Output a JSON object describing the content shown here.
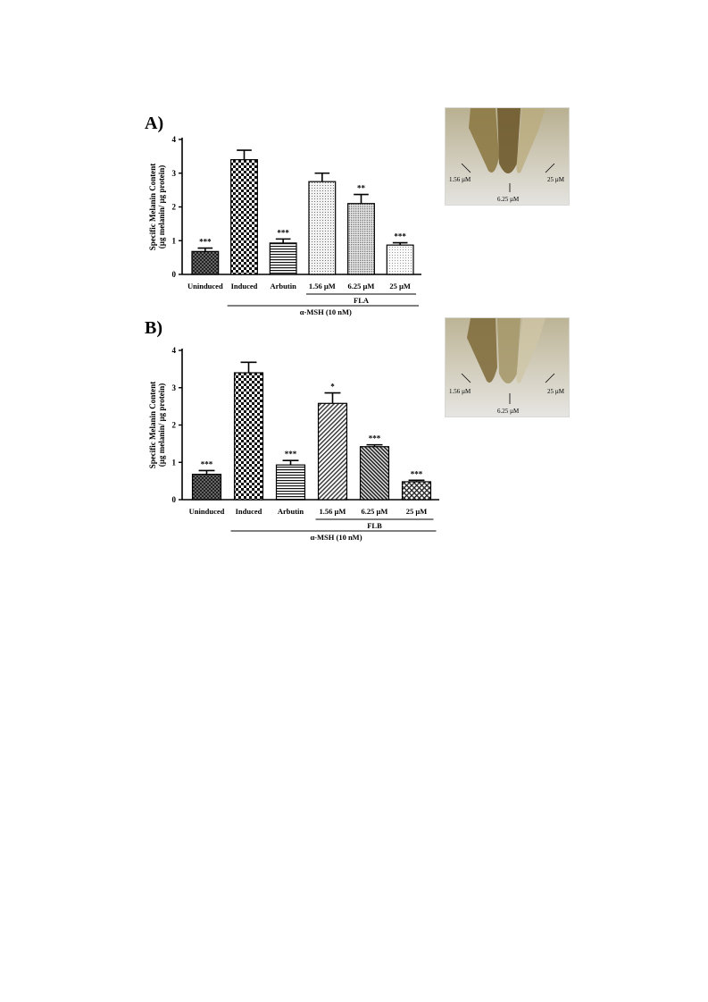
{
  "panel_a": {
    "label": "A)",
    "photo_labels": [
      "1.56 µM",
      "6.25 µM",
      "25 µM"
    ]
  },
  "panel_b": {
    "label": "B)",
    "photo_labels": [
      "1.56 µM",
      "6.25 µM",
      "25 µM"
    ]
  },
  "chart_data": [
    {
      "type": "bar",
      "title": "",
      "ylabel_line1": "Specific Melanin Content",
      "ylabel_line2": "(µg melanin/ µg protein)",
      "xlabel": "",
      "ylim": [
        0,
        4
      ],
      "yticks": [
        0,
        1,
        2,
        3,
        4
      ],
      "categories": [
        "Uninduced",
        "Induced",
        "Arbutin",
        "1.56 µM",
        "6.25 µM",
        "25 µM"
      ],
      "values": [
        0.68,
        3.4,
        0.93,
        2.75,
        2.1,
        0.87
      ],
      "errors": [
        0.1,
        0.28,
        0.12,
        0.25,
        0.27,
        0.07
      ],
      "significance": [
        "***",
        "",
        "***",
        "",
        "**",
        "***"
      ],
      "patterns": [
        "dense-check",
        "check",
        "hlines",
        "dots",
        "fine-dots",
        "dots-light"
      ],
      "group_label": "FLA",
      "bracket_label": "α-MSH (10 nM)"
    },
    {
      "type": "bar",
      "title": "",
      "ylabel_line1": "Specific Melanin Content",
      "ylabel_line2": "(µg melanin/ µg protein)",
      "xlabel": "",
      "ylim": [
        0,
        4
      ],
      "yticks": [
        0,
        1,
        2,
        3,
        4
      ],
      "categories": [
        "Uninduced",
        "Induced",
        "Arbutin",
        "1.56 µM",
        "6.25 µM",
        "25 µM"
      ],
      "values": [
        0.68,
        3.4,
        0.93,
        2.58,
        1.42,
        0.48
      ],
      "errors": [
        0.1,
        0.28,
        0.12,
        0.28,
        0.05,
        0.04
      ],
      "significance": [
        "***",
        "",
        "***",
        "*",
        "***",
        "***"
      ],
      "patterns": [
        "dense-check",
        "check",
        "hlines",
        "diag",
        "diag-dense",
        "diag-cross"
      ],
      "group_label": "FLB",
      "bracket_label": "α-MSH (10 nM)"
    }
  ]
}
